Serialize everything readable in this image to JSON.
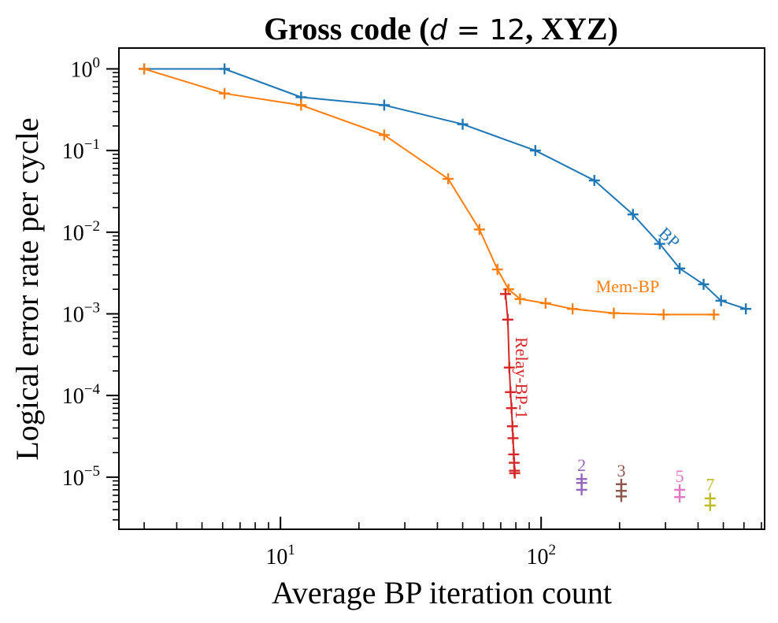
{
  "chart_data": {
    "type": "line",
    "title": {
      "prefix": "Gross code (",
      "math_var": "d",
      "math_rest": " = 12",
      "suffix": ", XYZ)"
    },
    "xlabel": "Average BP iteration count",
    "ylabel": "Logical error rate per cycle",
    "xscale": "log",
    "yscale": "log",
    "xlim": [
      2.4,
      720
    ],
    "ylim": [
      2.3e-06,
      1.8
    ],
    "x_ticks": [
      {
        "value": 10,
        "base": "10",
        "exp": "1"
      },
      {
        "value": 100,
        "base": "10",
        "exp": "2"
      }
    ],
    "y_ticks": [
      {
        "value": 1,
        "base": "10",
        "exp": "0"
      },
      {
        "value": 0.1,
        "base": "10",
        "exp": "−1"
      },
      {
        "value": 0.01,
        "base": "10",
        "exp": "−2"
      },
      {
        "value": 0.001,
        "base": "10",
        "exp": "−3"
      },
      {
        "value": 0.0001,
        "base": "10",
        "exp": "−4"
      },
      {
        "value": 1e-05,
        "base": "10",
        "exp": "−5"
      }
    ],
    "series": [
      {
        "name": "BP",
        "label": "BP",
        "color": "#1f77b4",
        "x": [
          3,
          6.1,
          12,
          25,
          50,
          95,
          160,
          225,
          285,
          340,
          420,
          490,
          610
        ],
        "y": [
          1.0,
          1.0,
          0.45,
          0.36,
          0.21,
          0.1,
          0.043,
          0.0165,
          0.0072,
          0.0036,
          0.0023,
          0.00145,
          0.00115
        ]
      },
      {
        "name": "Mem-BP",
        "label": "Mem-BP",
        "color": "#ff7f0e",
        "x": [
          3,
          6.1,
          12,
          25,
          44,
          58,
          68,
          75,
          83,
          104,
          132,
          190,
          295,
          460
        ],
        "y": [
          1.0,
          0.5,
          0.36,
          0.155,
          0.045,
          0.0108,
          0.0035,
          0.002,
          0.00152,
          0.00135,
          0.00115,
          0.00102,
          0.00098,
          0.00098
        ]
      },
      {
        "name": "Relay-BP-1",
        "label": "Relay-BP-1",
        "color": "#d62728",
        "x": [
          73,
          74.5,
          75.5,
          76.3,
          77,
          77.6,
          78,
          78.5,
          78.8,
          79,
          79.2
        ],
        "y": [
          0.00175,
          0.00085,
          0.00022,
          0.00011,
          7e-05,
          4.2e-05,
          3e-05,
          1.9e-05,
          1.5e-05,
          1.2e-05,
          1.12e-05
        ]
      }
    ],
    "points": [
      {
        "label": "2",
        "color": "#9467bd",
        "x": 143,
        "y": [
          8.5e-06,
          9.5e-06,
          7e-06
        ]
      },
      {
        "label": "3",
        "color": "#8c564b",
        "x": 203,
        "y": [
          8.2e-06,
          6.8e-06,
          5.8e-06
        ]
      },
      {
        "label": "5",
        "color": "#e377c2",
        "x": 340,
        "y": [
          7e-06,
          5.7e-06
        ]
      },
      {
        "label": "7",
        "color": "#bcbd22",
        "x": 445,
        "y": [
          5.5e-06,
          4.5e-06
        ]
      }
    ]
  }
}
